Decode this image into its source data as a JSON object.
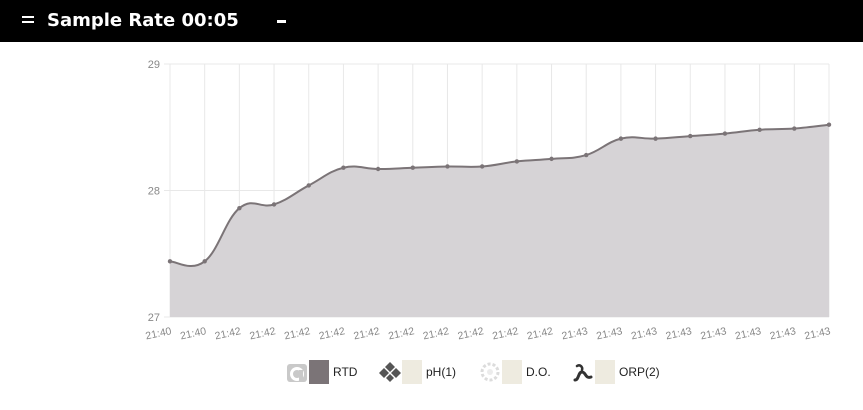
{
  "header": {
    "title": "Sample Rate 00:05"
  },
  "legend": [
    {
      "label": "RTD",
      "icon": "rtd-sensor-icon",
      "color": "#7b7477"
    },
    {
      "label": "pH(1)",
      "icon": "ph-sensor-icon",
      "color": "#eeebe0"
    },
    {
      "label": "D.O.",
      "icon": "do-sensor-icon",
      "color": "#eeebe0"
    },
    {
      "label": "ORP(2)",
      "icon": "orp-sensor-icon",
      "color": "#eeebe0"
    }
  ],
  "colors": {
    "line": "#7b7477",
    "fill": "#d6d3d6",
    "grid": "#e8e8e8",
    "axis_text": "#888888"
  },
  "chart_data": {
    "type": "area",
    "title": "",
    "xlabel": "",
    "ylabel": "",
    "ylim": [
      27,
      29
    ],
    "yticks": [
      27,
      28,
      29
    ],
    "grid": true,
    "legend_position": "bottom",
    "x": [
      "21:40",
      "21:40",
      "21:42",
      "21:42",
      "21:42",
      "21:42",
      "21:42",
      "21:42",
      "21:42",
      "21:42",
      "21:42",
      "21:42",
      "21:43",
      "21:43",
      "21:43",
      "21:43",
      "21:43",
      "21:43",
      "21:43",
      "21:43"
    ],
    "series": [
      {
        "name": "RTD",
        "values": [
          27.44,
          27.44,
          27.86,
          27.89,
          28.04,
          28.18,
          28.17,
          28.18,
          28.19,
          28.19,
          28.23,
          28.25,
          28.28,
          28.41,
          28.41,
          28.43,
          28.45,
          28.48,
          28.49,
          28.52
        ]
      }
    ]
  }
}
